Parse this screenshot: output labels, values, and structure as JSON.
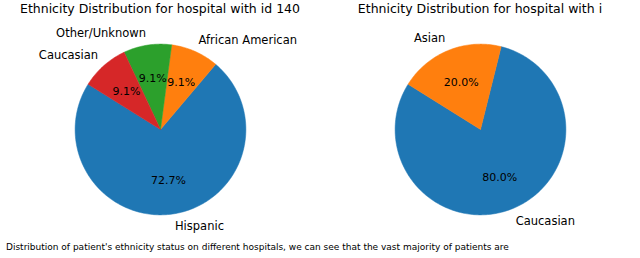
{
  "chart_data": [
    {
      "type": "pie",
      "title": "Ethnicity Distribution for hospital with id 140",
      "categories": [
        "Hispanic",
        "African American",
        "Other/Unknown",
        "Caucasian"
      ],
      "values": [
        72.7,
        9.1,
        9.1,
        9.1
      ],
      "value_labels": [
        "72.7%",
        "9.1%",
        "9.1%",
        "9.1%"
      ],
      "colors": [
        "#1f77b4",
        "#ff7f0e",
        "#2ca02c",
        "#d62728"
      ],
      "data_labels": true
    },
    {
      "type": "pie",
      "title": "Ethnicity Distribution for hospital with i",
      "categories": [
        "Caucasian",
        "Asian"
      ],
      "values": [
        80.0,
        20.0
      ],
      "value_labels": [
        "80.0%",
        "20.0%"
      ],
      "colors": [
        "#1f77b4",
        "#ff7f0e"
      ],
      "data_labels": true
    }
  ],
  "caption": "Distribution of patient's ethnicity status on different hospitals, we can see that the vast majority of patients are"
}
